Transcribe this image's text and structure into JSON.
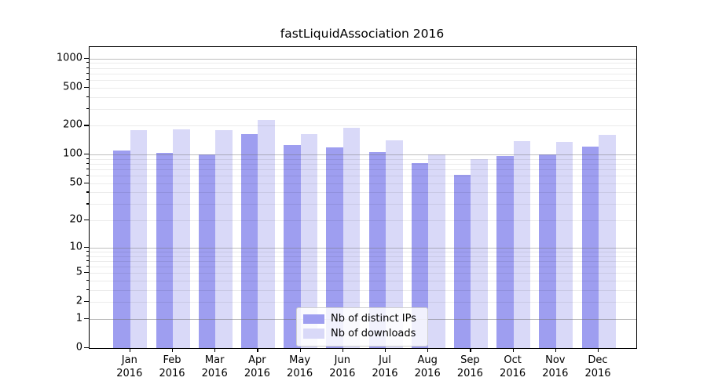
{
  "chart_data": {
    "type": "bar",
    "title": "fastLiquidAssociation 2016",
    "categories": [
      "Jan",
      "Feb",
      "Mar",
      "Apr",
      "May",
      "Jun",
      "Jul",
      "Aug",
      "Sep",
      "Oct",
      "Nov",
      "Dec"
    ],
    "category_year": "2016",
    "series": [
      {
        "name": "Nb of distinct IPs",
        "color": "#9e9ef0",
        "values": [
          110,
          105,
          100,
          165,
          125,
          120,
          107,
          81,
          62,
          97,
          100,
          121
        ]
      },
      {
        "name": "Nb of downloads",
        "color": "#d9d9f8",
        "values": [
          180,
          185,
          180,
          232,
          165,
          190,
          142,
          100,
          89,
          139,
          137,
          162
        ]
      }
    ],
    "yscale": "log1p",
    "ylim": [
      0,
      1300
    ],
    "yticks": [
      0,
      1,
      2,
      5,
      10,
      20,
      50,
      100,
      200,
      500,
      1000
    ],
    "minor_gridlines": [
      3,
      4,
      6,
      7,
      8,
      9,
      30,
      40,
      60,
      70,
      80,
      90,
      300,
      400,
      600,
      700,
      800,
      900
    ],
    "major_gridlines": [
      1,
      10,
      100,
      1000
    ],
    "light_gridlines": [
      2,
      5,
      20,
      50,
      200,
      500
    ],
    "grid": true,
    "legend_position": "lower center"
  }
}
